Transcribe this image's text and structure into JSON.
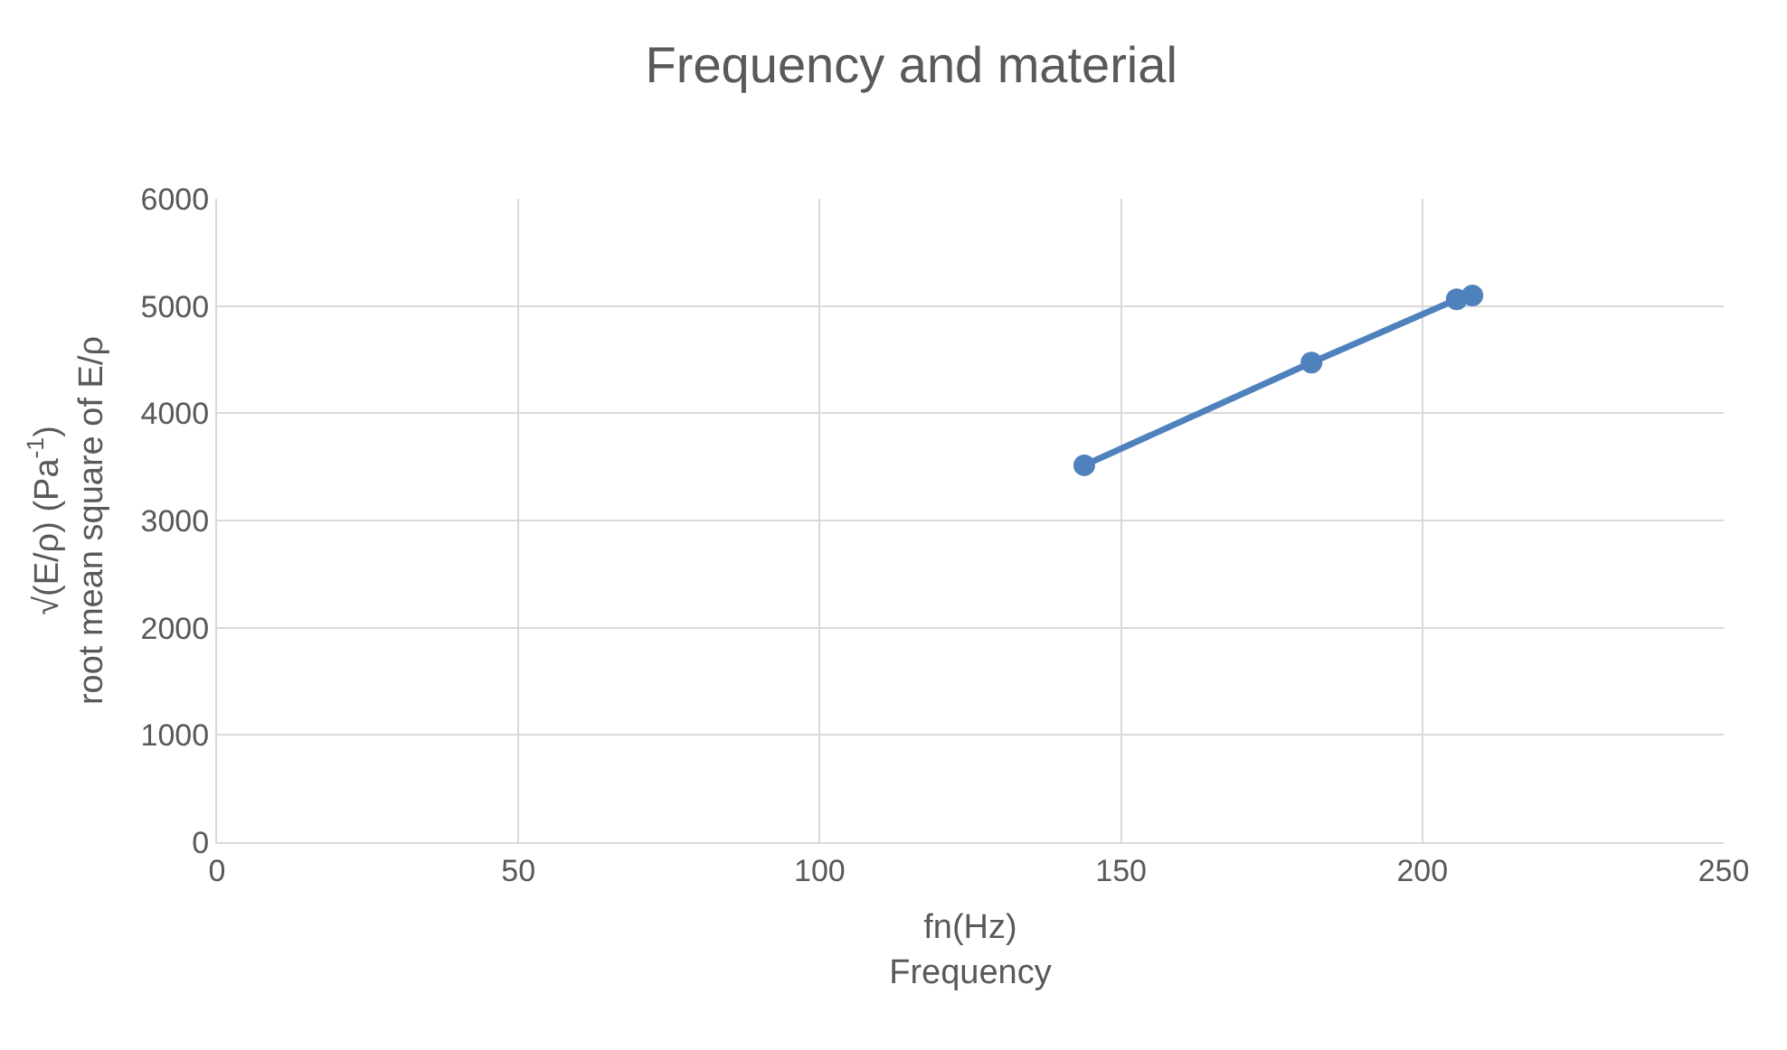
{
  "chart_data": {
    "type": "line",
    "title": "Frequency and material",
    "xlabel": "fn(Hz)\nFrequency",
    "ylabel": "√(E/ρ) (Pa$^{-1}$)\nroot mean square of E/ρ",
    "x": [
      143.9,
      181.6,
      205.7,
      208.3
    ],
    "series": [
      {
        "color": "#4f81bd",
        "values": [
          3515,
          4473,
          5062,
          5098
        ]
      }
    ],
    "xlim": [
      0,
      250
    ],
    "xticks": [
      0,
      50,
      100,
      150,
      200,
      250
    ],
    "ylim": [
      0,
      6000
    ],
    "yticks": [
      0,
      1000,
      2000,
      3000,
      4000,
      5000,
      6000
    ],
    "grid": true,
    "marker": "circle",
    "line_style": "solid",
    "legend": false
  }
}
